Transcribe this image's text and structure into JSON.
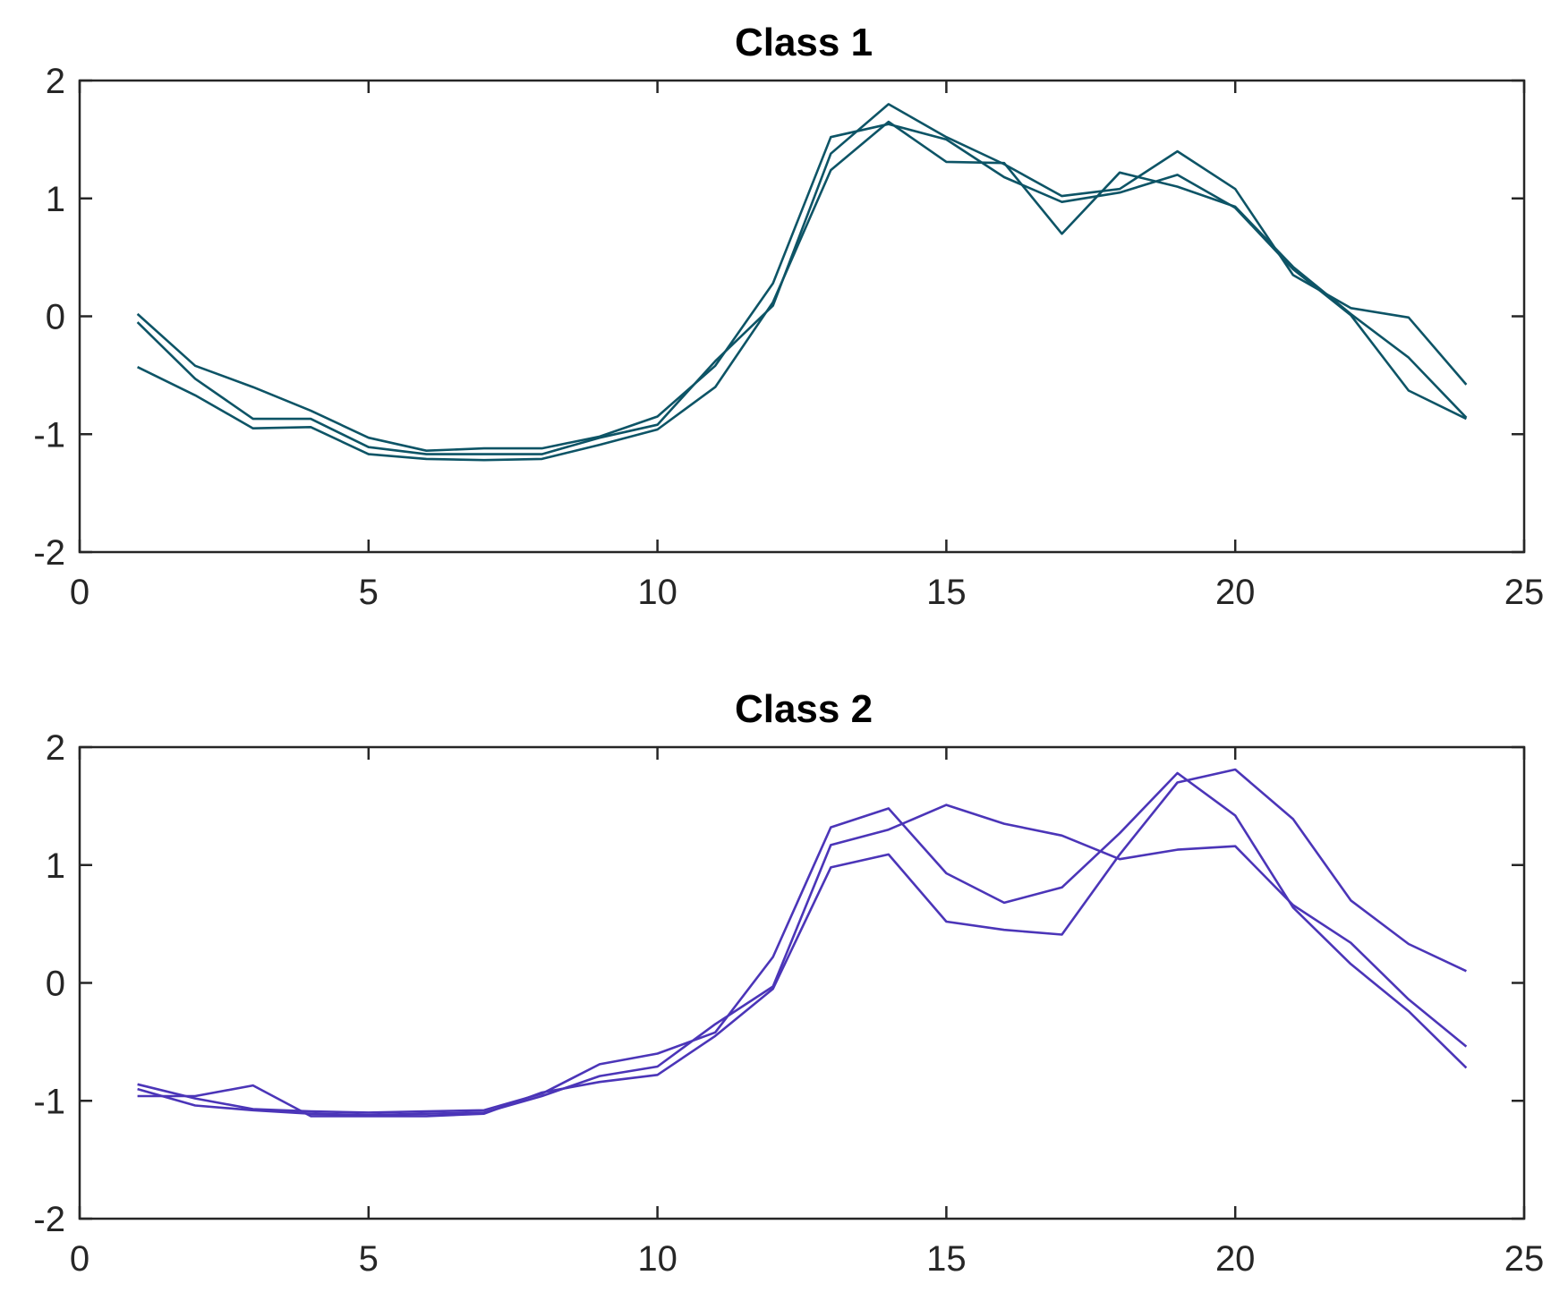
{
  "chart_data": [
    {
      "type": "line",
      "title": "Class 1",
      "xlabel": "",
      "ylabel": "",
      "xlim": [
        0,
        25
      ],
      "ylim": [
        -2,
        2
      ],
      "xticks": [
        0,
        5,
        10,
        15,
        20,
        25
      ],
      "yticks": [
        -2,
        -1,
        0,
        1,
        2
      ],
      "xtick_labels": [
        "0",
        "5",
        "10",
        "15",
        "20",
        "25"
      ],
      "ytick_labels": [
        "-2",
        "-1",
        "0",
        "1",
        "2"
      ],
      "grid": false,
      "color": "#0d5466",
      "x": [
        1,
        2,
        3,
        4,
        5,
        6,
        7,
        8,
        9,
        10,
        11,
        12,
        13,
        14,
        15,
        16,
        17,
        18,
        19,
        20,
        21,
        22,
        23,
        24
      ],
      "series": [
        {
          "values": [
            0.02,
            -0.42,
            -0.6,
            -0.8,
            -1.03,
            -1.14,
            -1.12,
            -1.12,
            -1.02,
            -0.85,
            -0.42,
            0.28,
            1.52,
            1.63,
            1.5,
            1.18,
            0.97,
            1.05,
            1.2,
            0.92,
            0.4,
            0.01,
            -0.63,
            -0.87
          ]
        },
        {
          "values": [
            -0.05,
            -0.53,
            -0.87,
            -0.87,
            -1.11,
            -1.17,
            -1.17,
            -1.17,
            -1.03,
            -0.92,
            -0.38,
            0.09,
            1.38,
            1.8,
            1.52,
            1.29,
            1.02,
            1.08,
            1.4,
            1.08,
            0.35,
            0.07,
            -0.01,
            -0.58
          ]
        },
        {
          "values": [
            -0.43,
            -0.67,
            -0.95,
            -0.94,
            -1.17,
            -1.21,
            -1.22,
            -1.21,
            -1.09,
            -0.96,
            -0.6,
            0.12,
            1.24,
            1.65,
            1.31,
            1.3,
            0.7,
            1.22,
            1.1,
            0.93,
            0.42,
            0.02,
            -0.35,
            -0.86
          ]
        }
      ]
    },
    {
      "type": "line",
      "title": "Class 2",
      "xlabel": "",
      "ylabel": "",
      "xlim": [
        0,
        25
      ],
      "ylim": [
        -2,
        2
      ],
      "xticks": [
        0,
        5,
        10,
        15,
        20,
        25
      ],
      "yticks": [
        -2,
        -1,
        0,
        1,
        2
      ],
      "xtick_labels": [
        "0",
        "5",
        "10",
        "15",
        "20",
        "25"
      ],
      "ytick_labels": [
        "-2",
        "-1",
        "0",
        "1",
        "2"
      ],
      "grid": false,
      "color": "#4b35b8",
      "x": [
        1,
        2,
        3,
        4,
        5,
        6,
        7,
        8,
        9,
        10,
        11,
        12,
        13,
        14,
        15,
        16,
        17,
        18,
        19,
        20,
        21,
        22,
        23,
        24
      ],
      "series": [
        {
          "values": [
            -0.86,
            -0.98,
            -1.07,
            -1.09,
            -1.1,
            -1.09,
            -1.08,
            -0.94,
            -0.69,
            -0.6,
            -0.42,
            0.22,
            1.32,
            1.48,
            0.93,
            0.68,
            0.81,
            1.27,
            1.78,
            1.42,
            0.64,
            0.16,
            -0.24,
            -0.72
          ]
        },
        {
          "values": [
            -0.96,
            -0.96,
            -0.87,
            -1.13,
            -1.13,
            -1.13,
            -1.11,
            -0.93,
            -0.84,
            -0.78,
            -0.45,
            -0.05,
            0.98,
            1.09,
            0.52,
            0.45,
            0.41,
            1.09,
            1.7,
            1.81,
            1.39,
            0.7,
            0.33,
            0.1
          ]
        },
        {
          "values": [
            -0.9,
            -1.04,
            -1.08,
            -1.11,
            -1.12,
            -1.11,
            -1.1,
            -0.96,
            -0.79,
            -0.71,
            -0.35,
            -0.03,
            1.17,
            1.3,
            1.51,
            1.35,
            1.25,
            1.05,
            1.13,
            1.16,
            0.66,
            0.34,
            -0.14,
            -0.54
          ]
        }
      ]
    }
  ]
}
